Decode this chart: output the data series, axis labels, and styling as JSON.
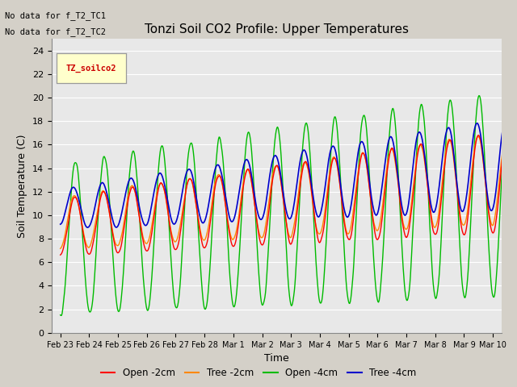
{
  "title": "Tonzi Soil CO2 Profile: Upper Temperatures",
  "xlabel": "Time",
  "ylabel": "Soil Temperature (C)",
  "note_line1": "No data for f_T2_TC1",
  "note_line2": "No data for f_T2_TC2",
  "legend_box_label": "TZ_soilco2",
  "ylim": [
    0,
    25
  ],
  "yticks": [
    0,
    2,
    4,
    6,
    8,
    10,
    12,
    14,
    16,
    18,
    20,
    22,
    24
  ],
  "xtick_labels": [
    "Feb 23",
    "Feb 24",
    "Feb 25",
    "Feb 26",
    "Feb 27",
    "Feb 28",
    "Mar 1",
    "Mar 2",
    "Mar 3",
    "Mar 4",
    "Mar 5",
    "Mar 6",
    "Mar 7",
    "Mar 8",
    "Mar 9",
    "Mar 10"
  ],
  "series_colors": {
    "open_2cm": "#ff0000",
    "tree_2cm": "#ff8800",
    "open_4cm": "#00bb00",
    "tree_4cm": "#0000cc"
  },
  "legend_labels": [
    "Open -2cm",
    "Tree -2cm",
    "Open -4cm",
    "Tree -4cm"
  ],
  "bg_color": "#e8e8e8",
  "grid_color": "#ffffff",
  "title_fontsize": 11,
  "axis_label_fontsize": 9
}
